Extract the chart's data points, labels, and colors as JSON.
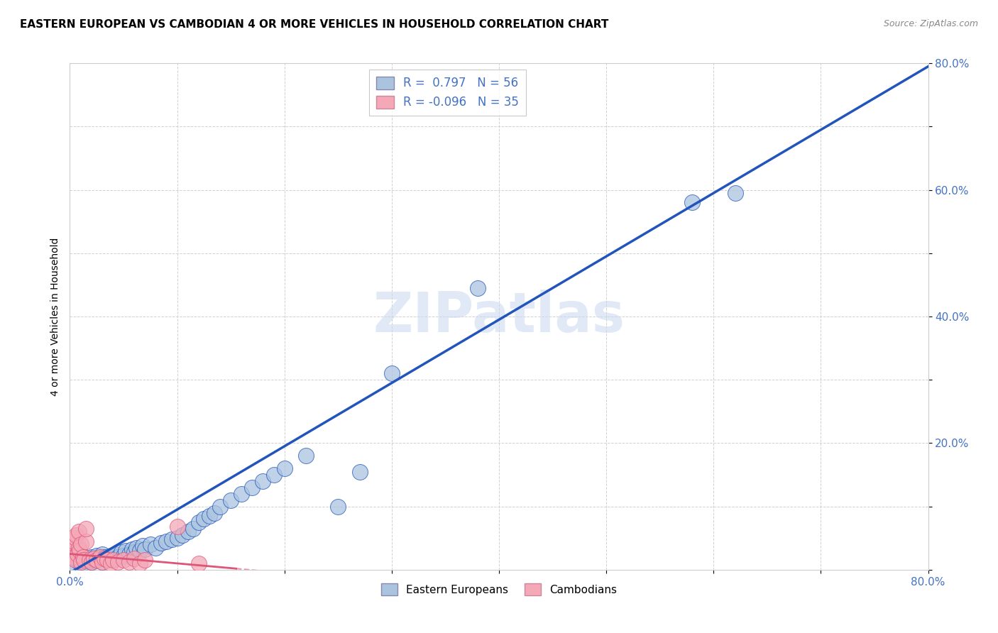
{
  "title": "EASTERN EUROPEAN VS CAMBODIAN 4 OR MORE VEHICLES IN HOUSEHOLD CORRELATION CHART",
  "source": "Source: ZipAtlas.com",
  "ylabel": "4 or more Vehicles in Household",
  "xlim": [
    0.0,
    0.8
  ],
  "ylim": [
    0.0,
    0.8
  ],
  "blue_R": 0.797,
  "blue_N": 56,
  "pink_R": -0.096,
  "pink_N": 35,
  "blue_color": "#aac4e0",
  "pink_color": "#f4a8b8",
  "blue_line_color": "#2255bb",
  "pink_line_color": "#dd5577",
  "legend_label_blue": "Eastern Europeans",
  "legend_label_pink": "Cambodians",
  "watermark": "ZIPatlas",
  "title_fontsize": 11,
  "axis_label_fontsize": 10,
  "tick_fontsize": 11,
  "tick_color": "#4472c4",
  "blue_scatter_x": [
    0.005,
    0.008,
    0.01,
    0.012,
    0.015,
    0.018,
    0.02,
    0.02,
    0.022,
    0.025,
    0.028,
    0.03,
    0.03,
    0.032,
    0.035,
    0.038,
    0.04,
    0.042,
    0.045,
    0.048,
    0.05,
    0.052,
    0.055,
    0.058,
    0.06,
    0.062,
    0.065,
    0.068,
    0.07,
    0.075,
    0.08,
    0.085,
    0.09,
    0.095,
    0.1,
    0.105,
    0.11,
    0.115,
    0.12,
    0.125,
    0.13,
    0.135,
    0.14,
    0.15,
    0.16,
    0.17,
    0.18,
    0.19,
    0.2,
    0.22,
    0.25,
    0.27,
    0.3,
    0.38,
    0.58,
    0.62
  ],
  "blue_scatter_y": [
    0.005,
    0.012,
    0.008,
    0.015,
    0.01,
    0.018,
    0.012,
    0.02,
    0.015,
    0.022,
    0.018,
    0.012,
    0.025,
    0.02,
    0.015,
    0.022,
    0.018,
    0.025,
    0.02,
    0.028,
    0.022,
    0.03,
    0.025,
    0.032,
    0.028,
    0.035,
    0.03,
    0.038,
    0.032,
    0.04,
    0.035,
    0.042,
    0.045,
    0.048,
    0.05,
    0.055,
    0.06,
    0.065,
    0.075,
    0.08,
    0.085,
    0.09,
    0.1,
    0.11,
    0.12,
    0.13,
    0.14,
    0.15,
    0.16,
    0.18,
    0.1,
    0.155,
    0.31,
    0.445,
    0.58,
    0.595
  ],
  "pink_scatter_x": [
    0.001,
    0.002,
    0.003,
    0.004,
    0.005,
    0.005,
    0.006,
    0.007,
    0.008,
    0.008,
    0.009,
    0.01,
    0.01,
    0.012,
    0.013,
    0.015,
    0.015,
    0.018,
    0.02,
    0.022,
    0.025,
    0.028,
    0.03,
    0.032,
    0.035,
    0.038,
    0.04,
    0.045,
    0.05,
    0.055,
    0.06,
    0.065,
    0.07,
    0.1,
    0.12
  ],
  "pink_scatter_y": [
    0.025,
    0.035,
    0.02,
    0.045,
    0.015,
    0.05,
    0.055,
    0.025,
    0.06,
    0.035,
    0.03,
    0.012,
    0.04,
    0.02,
    0.015,
    0.045,
    0.065,
    0.015,
    0.012,
    0.018,
    0.015,
    0.02,
    0.012,
    0.018,
    0.015,
    0.01,
    0.015,
    0.012,
    0.015,
    0.012,
    0.018,
    0.01,
    0.015,
    0.068,
    0.01
  ]
}
